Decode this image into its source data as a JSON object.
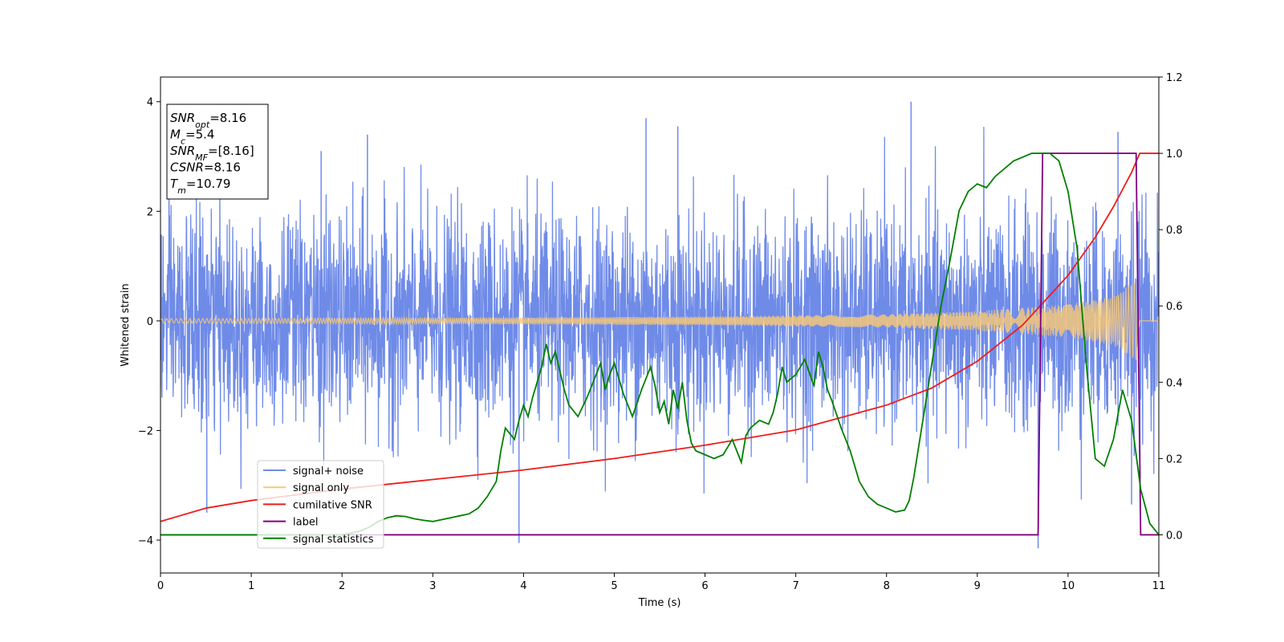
{
  "chart_data": {
    "type": "line",
    "title": "",
    "xlabel": "Time (s)",
    "ylabel": "Whitened strain",
    "xlim": [
      0,
      11
    ],
    "ylim": [
      -4.6,
      4.45
    ],
    "y2lim": [
      -0.1,
      1.2
    ],
    "xticks": [
      "0",
      "1",
      "2",
      "3",
      "4",
      "5",
      "6",
      "7",
      "8",
      "9",
      "10",
      "11"
    ],
    "yticks": [
      "−4",
      "−2",
      "0",
      "2",
      "4"
    ],
    "y2ticks": [
      "0.0",
      "0.2",
      "0.4",
      "0.6",
      "0.8",
      "1.0",
      "1.2"
    ],
    "grid": false,
    "legend_position": "lower-left",
    "annotation": {
      "lines": [
        {
          "base": "SNR",
          "sub": "opt",
          "value": "=8.16"
        },
        {
          "base": "M",
          "sub": "c",
          "value": "=5.4"
        },
        {
          "base": "SNR",
          "sub": "MF",
          "value": "=[8.16]"
        },
        {
          "base": "CSNR",
          "sub": "",
          "value": "=8.16"
        },
        {
          "base": "T",
          "sub": "m",
          "value": "=10.79"
        }
      ]
    },
    "series": [
      {
        "name": "signal+ noise",
        "color": "#6f8be8",
        "axis": "left",
        "description": "whitened noisy strain, roughly within ±2.5 with spikes to ~4",
        "envelope_abs_max": 2.5,
        "notable_spikes": [
          [
            0.51,
            -3.5
          ],
          [
            1.77,
            3.1
          ],
          [
            2.28,
            3.4
          ],
          [
            3.95,
            -4.05
          ],
          [
            5.35,
            3.7
          ],
          [
            5.7,
            3.55
          ],
          [
            8.27,
            4.0
          ],
          [
            9.67,
            -4.15
          ],
          [
            10.55,
            3.45
          ],
          [
            10.7,
            -3.35
          ]
        ]
      },
      {
        "name": "signal only",
        "color": "#f5c77a",
        "axis": "left",
        "description": "chirp waveform growing in amplitude until merger",
        "amplitude": [
          [
            0.0,
            0.04
          ],
          [
            2.0,
            0.05
          ],
          [
            4.0,
            0.06
          ],
          [
            6.0,
            0.08
          ],
          [
            8.0,
            0.12
          ],
          [
            9.0,
            0.18
          ],
          [
            10.0,
            0.3
          ],
          [
            10.5,
            0.45
          ],
          [
            10.75,
            0.75
          ],
          [
            10.79,
            0.0
          ],
          [
            11.0,
            0.0
          ]
        ]
      },
      {
        "name": "cumilative SNR",
        "color": "#ee1c1c",
        "axis": "right",
        "x": [
          0.0,
          0.5,
          1.0,
          2.0,
          3.0,
          4.0,
          5.0,
          6.0,
          7.0,
          8.0,
          8.5,
          9.0,
          9.5,
          10.0,
          10.3,
          10.5,
          10.7,
          10.79,
          11.0
        ],
        "y": [
          0.035,
          0.07,
          0.09,
          0.12,
          0.145,
          0.17,
          0.2,
          0.235,
          0.275,
          0.34,
          0.385,
          0.455,
          0.55,
          0.68,
          0.78,
          0.86,
          0.95,
          1.0,
          1.0
        ]
      },
      {
        "name": "label",
        "color": "#800080",
        "axis": "right",
        "x": [
          0.0,
          9.67,
          9.72,
          10.75,
          10.8,
          11.0
        ],
        "y": [
          0.0,
          0.0,
          1.0,
          1.0,
          0.0,
          0.0
        ]
      },
      {
        "name": "signal statistics",
        "color": "#008000",
        "axis": "right",
        "x": [
          0.0,
          1.5,
          2.0,
          2.2,
          2.3,
          2.4,
          2.5,
          2.6,
          2.7,
          2.8,
          2.9,
          3.0,
          3.1,
          3.2,
          3.3,
          3.4,
          3.5,
          3.6,
          3.7,
          3.75,
          3.8,
          3.9,
          3.95,
          4.0,
          4.05,
          4.1,
          4.2,
          4.25,
          4.3,
          4.35,
          4.4,
          4.45,
          4.5,
          4.6,
          4.7,
          4.8,
          4.85,
          4.9,
          4.95,
          5.0,
          5.1,
          5.2,
          5.3,
          5.4,
          5.45,
          5.5,
          5.55,
          5.6,
          5.65,
          5.7,
          5.75,
          5.8,
          5.85,
          5.9,
          6.0,
          6.1,
          6.2,
          6.3,
          6.4,
          6.45,
          6.5,
          6.6,
          6.7,
          6.75,
          6.8,
          6.85,
          6.9,
          7.0,
          7.1,
          7.2,
          7.25,
          7.3,
          7.35,
          7.4,
          7.5,
          7.6,
          7.7,
          7.8,
          7.9,
          8.0,
          8.1,
          8.2,
          8.25,
          8.3,
          8.4,
          8.5,
          8.6,
          8.7,
          8.8,
          8.9,
          9.0,
          9.1,
          9.2,
          9.3,
          9.4,
          9.5,
          9.6,
          9.7,
          9.8,
          9.9,
          10.0,
          10.1,
          10.2,
          10.3,
          10.4,
          10.5,
          10.6,
          10.7,
          10.8,
          10.9,
          11.0
        ],
        "y": [
          0.0,
          0.0,
          0.0,
          0.01,
          0.02,
          0.035,
          0.045,
          0.05,
          0.048,
          0.042,
          0.038,
          0.035,
          0.04,
          0.045,
          0.05,
          0.055,
          0.07,
          0.1,
          0.14,
          0.22,
          0.28,
          0.25,
          0.3,
          0.34,
          0.31,
          0.36,
          0.44,
          0.5,
          0.45,
          0.48,
          0.43,
          0.38,
          0.34,
          0.31,
          0.36,
          0.42,
          0.45,
          0.38,
          0.42,
          0.45,
          0.37,
          0.31,
          0.38,
          0.44,
          0.39,
          0.32,
          0.35,
          0.29,
          0.38,
          0.33,
          0.4,
          0.3,
          0.24,
          0.22,
          0.21,
          0.2,
          0.21,
          0.25,
          0.19,
          0.26,
          0.28,
          0.3,
          0.29,
          0.32,
          0.37,
          0.44,
          0.4,
          0.42,
          0.46,
          0.39,
          0.48,
          0.44,
          0.38,
          0.35,
          0.28,
          0.22,
          0.14,
          0.1,
          0.08,
          0.07,
          0.06,
          0.065,
          0.09,
          0.15,
          0.3,
          0.45,
          0.6,
          0.72,
          0.85,
          0.9,
          0.92,
          0.91,
          0.94,
          0.96,
          0.98,
          0.99,
          1.0,
          1.0,
          1.0,
          0.98,
          0.9,
          0.75,
          0.45,
          0.2,
          0.18,
          0.25,
          0.38,
          0.3,
          0.12,
          0.03,
          0.0
        ]
      }
    ]
  }
}
